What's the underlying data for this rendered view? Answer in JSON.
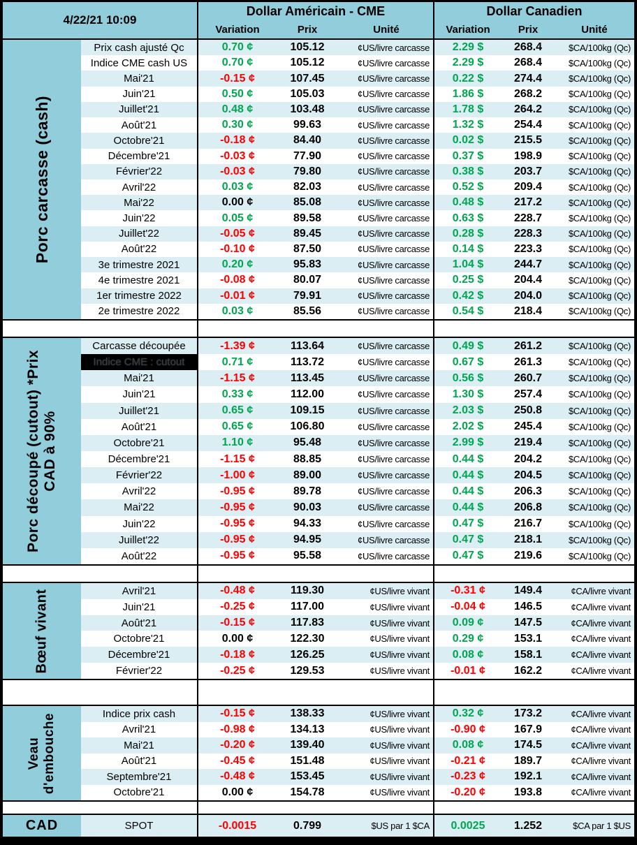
{
  "meta": {
    "datetime": "4/22/21 10:09"
  },
  "header": {
    "us_title": "Dollar Américain - CME",
    "ca_title": "Dollar Canadien",
    "columns": [
      "Variation",
      "Prix",
      "Unité"
    ]
  },
  "colors": {
    "header_blue": "#92CDDC",
    "stripe_blue": "#DAEEF3",
    "positive_green": "#00A650",
    "negative_red": "#FF0000",
    "selected_cell_bg": "#000000"
  },
  "sections": [
    {
      "id": "porc-carcasse",
      "sidebar_lines": [
        "Porc carcasse (cash)"
      ],
      "us_unit": "¢US/livre carcasse",
      "ca_unit": "$CA/100kg (Qc)",
      "rows": [
        {
          "label": "Prix cash ajusté Qc",
          "us_var": "0.70 ¢",
          "us_prix": "105.12",
          "ca_var": "2.29 $",
          "ca_prix": "268.4"
        },
        {
          "label": "Indice CME cash US",
          "us_var": "0.70 ¢",
          "us_prix": "105.12",
          "ca_var": "2.29 $",
          "ca_prix": "268.4"
        },
        {
          "label": "Mai'21",
          "us_var": "-0.15 ¢",
          "us_prix": "107.45",
          "ca_var": "0.22 $",
          "ca_prix": "274.4"
        },
        {
          "label": "Juin'21",
          "us_var": "0.50 ¢",
          "us_prix": "105.03",
          "ca_var": "1.86 $",
          "ca_prix": "268.2"
        },
        {
          "label": "Juillet'21",
          "us_var": "0.48 ¢",
          "us_prix": "103.48",
          "ca_var": "1.78 $",
          "ca_prix": "264.2"
        },
        {
          "label": "Août'21",
          "us_var": "0.30 ¢",
          "us_prix": "99.63",
          "ca_var": "1.32 $",
          "ca_prix": "254.4"
        },
        {
          "label": "Octobre'21",
          "us_var": "-0.18 ¢",
          "us_prix": "84.40",
          "ca_var": "0.02 $",
          "ca_prix": "215.5"
        },
        {
          "label": "Décembre'21",
          "us_var": "-0.03 ¢",
          "us_prix": "77.90",
          "ca_var": "0.37 $",
          "ca_prix": "198.9"
        },
        {
          "label": "Février'22",
          "us_var": "-0.03 ¢",
          "us_prix": "79.80",
          "ca_var": "0.38 $",
          "ca_prix": "203.7"
        },
        {
          "label": "Avril'22",
          "us_var": "0.03 ¢",
          "us_prix": "82.03",
          "ca_var": "0.52 $",
          "ca_prix": "209.4"
        },
        {
          "label": "Mai'22",
          "us_var": "0.00 ¢",
          "us_prix": "85.08",
          "ca_var": "0.48 $",
          "ca_prix": "217.2"
        },
        {
          "label": "Juin'22",
          "us_var": "0.05 ¢",
          "us_prix": "89.58",
          "ca_var": "0.63 $",
          "ca_prix": "228.7"
        },
        {
          "label": "Juillet'22",
          "us_var": "-0.05 ¢",
          "us_prix": "89.45",
          "ca_var": "0.28 $",
          "ca_prix": "228.3"
        },
        {
          "label": "Août'22",
          "us_var": "-0.10 ¢",
          "us_prix": "87.50",
          "ca_var": "0.14 $",
          "ca_prix": "223.3"
        },
        {
          "label": "3e trimestre 2021",
          "us_var": "0.20 ¢",
          "us_prix": "95.83",
          "ca_var": "1.04 $",
          "ca_prix": "244.7"
        },
        {
          "label": "4e trimestre 2021",
          "us_var": "-0.08 ¢",
          "us_prix": "80.07",
          "ca_var": "0.25 $",
          "ca_prix": "204.4"
        },
        {
          "label": "1er trimestre 2022",
          "us_var": "-0.01 ¢",
          "us_prix": "79.91",
          "ca_var": "0.42 $",
          "ca_prix": "204.0"
        },
        {
          "label": "2e trimestre 2022",
          "us_var": "0.03 ¢",
          "us_prix": "85.56",
          "ca_var": "0.54 $",
          "ca_prix": "218.4"
        }
      ]
    },
    {
      "id": "porc-decoupe",
      "sidebar_lines": [
        "Porc découpé (cutout) *Prix",
        "CAD à 90%"
      ],
      "us_unit": "¢US/livre carcasse",
      "ca_unit": "$CA/100kg (Qc)",
      "rows": [
        {
          "label": "Carcasse découpée",
          "us_var": "-1.39 ¢",
          "us_prix": "113.64",
          "ca_var": "0.49 $",
          "ca_prix": "261.2"
        },
        {
          "label": "Indice CME : cutout",
          "selected": true,
          "us_var": "0.71 ¢",
          "us_prix": "113.72",
          "ca_var": "0.67 $",
          "ca_prix": "261.3"
        },
        {
          "label": "Mai'21",
          "us_var": "-1.15 ¢",
          "us_prix": "113.45",
          "ca_var": "0.56 $",
          "ca_prix": "260.7"
        },
        {
          "label": "Juin'21",
          "us_var": "0.33 ¢",
          "us_prix": "112.00",
          "ca_var": "1.30 $",
          "ca_prix": "257.4"
        },
        {
          "label": "Juillet'21",
          "us_var": "0.65 ¢",
          "us_prix": "109.15",
          "ca_var": "2.03 $",
          "ca_prix": "250.8"
        },
        {
          "label": "Août'21",
          "us_var": "0.65 ¢",
          "us_prix": "106.80",
          "ca_var": "2.02 $",
          "ca_prix": "245.4"
        },
        {
          "label": "Octobre'21",
          "us_var": "1.10 ¢",
          "us_prix": "95.48",
          "ca_var": "2.99 $",
          "ca_prix": "219.4"
        },
        {
          "label": "Décembre'21",
          "us_var": "-1.15 ¢",
          "us_prix": "88.85",
          "ca_var": "0.44 $",
          "ca_prix": "204.2"
        },
        {
          "label": "Février'22",
          "us_var": "-1.00 ¢",
          "us_prix": "89.00",
          "ca_var": "0.44 $",
          "ca_prix": "204.5"
        },
        {
          "label": "Avril'22",
          "us_var": "-0.95 ¢",
          "us_prix": "89.78",
          "ca_var": "0.44 $",
          "ca_prix": "206.3"
        },
        {
          "label": "Mai'22",
          "us_var": "-0.95 ¢",
          "us_prix": "90.03",
          "ca_var": "0.44 $",
          "ca_prix": "206.8"
        },
        {
          "label": "Juin'22",
          "us_var": "-0.95 ¢",
          "us_prix": "94.33",
          "ca_var": "0.47 $",
          "ca_prix": "216.7"
        },
        {
          "label": "Juillet'22",
          "us_var": "-0.95 ¢",
          "us_prix": "94.95",
          "ca_var": "0.47 $",
          "ca_prix": "218.1"
        },
        {
          "label": "Août'22",
          "us_var": "-0.95 ¢",
          "us_prix": "95.58",
          "ca_var": "0.47 $",
          "ca_prix": "219.6"
        }
      ]
    },
    {
      "id": "boeuf-vivant",
      "sidebar_lines": [
        "Bœuf vivant"
      ],
      "us_unit": "¢US/livre vivant",
      "ca_unit": "¢CA/livre vivant",
      "rows": [
        {
          "label": "Avril'21",
          "us_var": "-0.48 ¢",
          "us_prix": "119.30",
          "ca_var": "-0.31 ¢",
          "ca_prix": "149.4"
        },
        {
          "label": "Juin'21",
          "us_var": "-0.25 ¢",
          "us_prix": "117.00",
          "ca_var": "-0.04 ¢",
          "ca_prix": "146.5"
        },
        {
          "label": "Août'21",
          "us_var": "-0.15 ¢",
          "us_prix": "117.83",
          "ca_var": "0.09 ¢",
          "ca_prix": "147.5"
        },
        {
          "label": "Octobre'21",
          "us_var": "0.00 ¢",
          "us_prix": "122.30",
          "ca_var": "0.29 ¢",
          "ca_prix": "153.1"
        },
        {
          "label": "Décembre'21",
          "us_var": "-0.18 ¢",
          "us_prix": "126.25",
          "ca_var": "0.08 ¢",
          "ca_prix": "158.1"
        },
        {
          "label": "Février'22",
          "us_var": "-0.25 ¢",
          "us_prix": "129.53",
          "ca_var": "-0.01 ¢",
          "ca_prix": "162.2"
        }
      ]
    },
    {
      "id": "veau-embouche",
      "sidebar_lines": [
        "Veau",
        "d'embouche"
      ],
      "us_unit": "¢US/livre vivant",
      "ca_unit": "¢CA/livre vivant",
      "rows": [
        {
          "label": "Indice prix cash",
          "us_var": "-0.15 ¢",
          "us_prix": "138.33",
          "ca_var": "0.32 ¢",
          "ca_prix": "173.2"
        },
        {
          "label": "Avril'21",
          "us_var": "-0.98 ¢",
          "us_prix": "134.13",
          "ca_var": "-0.90 ¢",
          "ca_prix": "167.9"
        },
        {
          "label": "Mai'21",
          "us_var": "-0.20 ¢",
          "us_prix": "139.40",
          "ca_var": "0.08 ¢",
          "ca_prix": "174.5"
        },
        {
          "label": "Août'21",
          "us_var": "-0.45 ¢",
          "us_prix": "151.48",
          "ca_var": "-0.21 ¢",
          "ca_prix": "189.7"
        },
        {
          "label": "Septembre'21",
          "us_var": "-0.48 ¢",
          "us_prix": "153.45",
          "ca_var": "-0.23 ¢",
          "ca_prix": "192.1"
        },
        {
          "label": "Octobre'21",
          "us_var": "0.00 ¢",
          "us_prix": "154.78",
          "ca_var": "-0.20 ¢",
          "ca_prix": "193.8"
        }
      ]
    }
  ],
  "cad_row": {
    "sidebar": "CAD",
    "label": "SPOT",
    "us_var": "-0.0015",
    "us_prix": "0.799",
    "us_unit": "$US par 1 $CA",
    "ca_var": "0.0025",
    "ca_prix": "1.252",
    "ca_unit": "$CA par 1 $US"
  }
}
